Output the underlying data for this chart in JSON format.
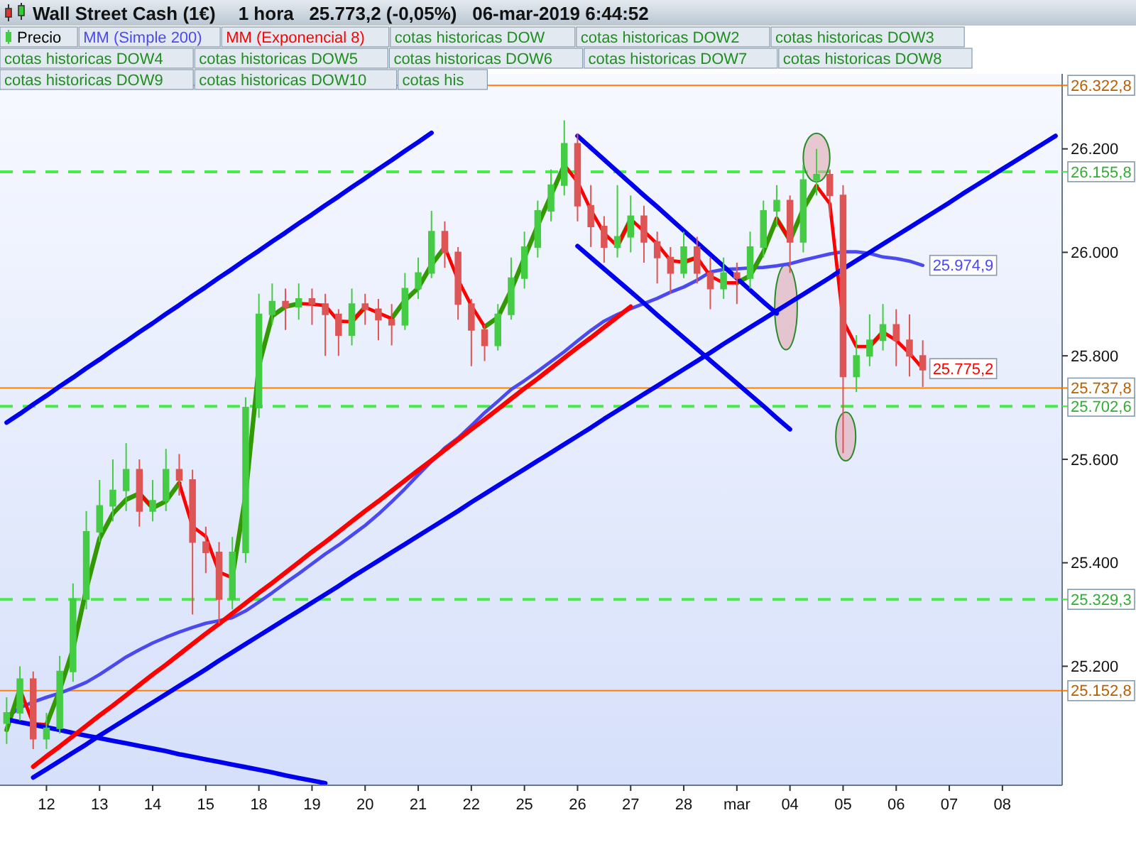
{
  "chart_data": {
    "type": "candlestick",
    "title": "Wall Street Cash (1€)",
    "subtitle": "1 hora   25.773,2 (-0,05%)   06-mar-2019 6:44:52",
    "categories": [
      null,
      null,
      null,
      "12",
      null,
      null,
      null,
      "13",
      null,
      null,
      null,
      "14",
      null,
      null,
      null,
      "15",
      null,
      null,
      null,
      "18",
      null,
      null,
      null,
      "19",
      null,
      null,
      null,
      "20",
      null,
      null,
      null,
      "21",
      null,
      null,
      null,
      "22",
      null,
      null,
      null,
      "25",
      null,
      null,
      null,
      "26",
      null,
      null,
      null,
      "27",
      null,
      null,
      null,
      "28",
      null,
      null,
      null,
      "mar",
      null,
      null,
      null,
      "04",
      null,
      null,
      null,
      "05",
      null,
      null,
      null,
      "06",
      null,
      null,
      null,
      "07",
      null,
      null,
      null,
      "08",
      null,
      null,
      null,
      null
    ],
    "ylim": [
      24970,
      26345
    ],
    "yticks": [
      {
        "value": 25200,
        "label": "25.200"
      },
      {
        "value": 25400,
        "label": "25.400"
      },
      {
        "value": 25600,
        "label": "25.600"
      },
      {
        "value": 25800,
        "label": "25.800"
      },
      {
        "value": 26000,
        "label": "26.000"
      },
      {
        "value": 26200,
        "label": "26.200"
      }
    ],
    "legend": "top left",
    "series": [
      {
        "name": "Precio",
        "ohlc": [
          [
            25090,
            25140,
            25050,
            25110
          ],
          [
            25110,
            25200,
            25095,
            25175
          ],
          [
            25175,
            25190,
            25040,
            25060
          ],
          [
            25060,
            25110,
            25040,
            25080
          ],
          [
            25080,
            25220,
            25070,
            25190
          ],
          [
            25190,
            25360,
            25170,
            25330
          ],
          [
            25330,
            25500,
            25310,
            25460
          ],
          [
            25460,
            25560,
            25440,
            25510
          ],
          [
            25510,
            25600,
            25480,
            25540
          ],
          [
            25540,
            25631,
            25500,
            25580
          ],
          [
            25580,
            25600,
            25470,
            25500
          ],
          [
            25500,
            25560,
            25480,
            25520
          ],
          [
            25520,
            25620,
            25500,
            25580
          ],
          [
            25580,
            25610,
            25530,
            25560
          ],
          [
            25560,
            25580,
            25300,
            25440
          ],
          [
            25440,
            25470,
            25380,
            25420
          ],
          [
            25420,
            25440,
            25283,
            25330
          ],
          [
            25330,
            25450,
            25310,
            25420
          ],
          [
            25420,
            25720,
            25400,
            25700
          ],
          [
            25700,
            25920,
            25680,
            25880
          ],
          [
            25880,
            25940,
            25860,
            25905
          ],
          [
            25905,
            25930,
            25850,
            25895
          ],
          [
            25895,
            25940,
            25870,
            25910
          ],
          [
            25910,
            25930,
            25860,
            25900
          ],
          [
            25900,
            25920,
            25800,
            25880
          ],
          [
            25880,
            25890,
            25800,
            25840
          ],
          [
            25840,
            25930,
            25820,
            25900
          ],
          [
            25900,
            25920,
            25860,
            25890
          ],
          [
            25890,
            25910,
            25830,
            25870
          ],
          [
            25870,
            25900,
            25820,
            25860
          ],
          [
            25860,
            25960,
            25850,
            25930
          ],
          [
            25930,
            25990,
            25910,
            25960
          ],
          [
            25960,
            26080,
            25950,
            26040
          ],
          [
            26040,
            26060,
            25970,
            26000
          ],
          [
            26000,
            26010,
            25870,
            25900
          ],
          [
            25900,
            25910,
            25780,
            25850
          ],
          [
            25850,
            25860,
            25790,
            25820
          ],
          [
            25820,
            25900,
            25810,
            25880
          ],
          [
            25880,
            25990,
            25870,
            25950
          ],
          [
            25950,
            26040,
            25930,
            26010
          ],
          [
            26010,
            26100,
            25990,
            26080
          ],
          [
            26080,
            26160,
            26060,
            26130
          ],
          [
            26130,
            26255,
            26110,
            26210
          ],
          [
            26210,
            26230,
            26060,
            26090
          ],
          [
            26090,
            26130,
            26010,
            26050
          ],
          [
            26050,
            26070,
            25980,
            26010
          ],
          [
            26010,
            26130,
            25990,
            26030
          ],
          [
            26030,
            26110,
            26000,
            26070
          ],
          [
            26070,
            26090,
            25980,
            26020
          ],
          [
            26020,
            26040,
            25940,
            25990
          ],
          [
            25990,
            26010,
            25920,
            25960
          ],
          [
            25960,
            26040,
            25950,
            26010
          ],
          [
            26010,
            26030,
            25940,
            25960
          ],
          [
            25960,
            25990,
            25890,
            25930
          ],
          [
            25930,
            25990,
            25910,
            25960
          ],
          [
            25960,
            25980,
            25900,
            25950
          ],
          [
            25950,
            26040,
            25930,
            26010
          ],
          [
            26010,
            26100,
            25990,
            26080
          ],
          [
            26080,
            26130,
            26050,
            26100
          ],
          [
            26100,
            26110,
            25960,
            26020
          ],
          [
            26020,
            26170,
            26000,
            26140
          ],
          [
            26140,
            26200,
            26110,
            26150
          ],
          [
            26150,
            26160,
            26070,
            26110
          ],
          [
            26110,
            26130,
            25612,
            25760
          ],
          [
            25760,
            25840,
            25730,
            25800
          ],
          [
            25800,
            25880,
            25780,
            25830
          ],
          [
            25830,
            25900,
            25810,
            25860
          ],
          [
            25860,
            25890,
            25780,
            25830
          ],
          [
            25830,
            25880,
            25760,
            25800
          ],
          [
            25800,
            25830,
            25740,
            25773
          ],
          null,
          null,
          null,
          null,
          null,
          null,
          null,
          null,
          null,
          null
        ]
      },
      {
        "type": "line",
        "name": "MM (Simple 200)",
        "color": "#4a4af0",
        "values": [
          25101,
          25120,
          25131,
          25140,
          25148,
          25158,
          25169,
          25184,
          25201,
          25218,
          25232,
          25245,
          25256,
          25266,
          25275,
          25283,
          25288,
          25294,
          25307,
          25324,
          25342,
          25361,
          25379,
          25398,
          25417,
          25434,
          25453,
          25472,
          25494,
          25518,
          25543,
          25570,
          25596,
          25622,
          25641,
          25665,
          25690,
          25712,
          25735,
          25752,
          25770,
          25789,
          25808,
          25829,
          25849,
          25867,
          25880,
          25891,
          25901,
          25911,
          25923,
          25933,
          25946,
          25962,
          25967,
          25968,
          25970,
          25971,
          25974,
          25978,
          25985,
          25991,
          25997,
          26001,
          26001,
          25998,
          25991,
          25988,
          25983,
          25974.9,
          null,
          null,
          null,
          null,
          null,
          null,
          null,
          null,
          null,
          null
        ],
        "value_labels": [
          null,
          null,
          null,
          null,
          null,
          null,
          null,
          null,
          null,
          null,
          null,
          null,
          null,
          null,
          null,
          null,
          null,
          null,
          null,
          null,
          null,
          null,
          null,
          null,
          null,
          null,
          null,
          null,
          null,
          null,
          null,
          null,
          null,
          null,
          null,
          null,
          null,
          null,
          null,
          null,
          null,
          null,
          null,
          null,
          null,
          null,
          null,
          null,
          null,
          null,
          null,
          null,
          null,
          null,
          null,
          null,
          null,
          null,
          null,
          null,
          null,
          null,
          null,
          null,
          null,
          null,
          null,
          null,
          null,
          "25.974,9",
          null,
          null,
          null,
          null,
          null,
          null,
          null,
          null,
          null,
          null
        ]
      },
      {
        "type": "line",
        "color": "#339900",
        "values": [
          25077,
          25156,
          null,
          25087,
          25154,
          25233,
          25349,
          25447,
          25495,
          25522,
          25534,
          25506,
          25519,
          25554,
          null,
          null,
          null,
          25371,
          25532,
          25781,
          25877,
          25895,
          25901,
          null,
          null,
          null,
          25866,
          25894,
          null,
          25872,
          25907,
          25931,
          25976,
          26010,
          null,
          null,
          25856,
          25874,
          25927,
          25990,
          26052,
          26110,
          26169,
          null,
          null,
          null,
          26012,
          26064,
          null,
          null,
          null,
          25981,
          25990,
          null,
          null,
          25941,
          25955,
          26001,
          26065,
          26023,
          26084,
          26128,
          null,
          null,
          null,
          25818,
          25846,
          null,
          null,
          null,
          null,
          null,
          null,
          null,
          null,
          null,
          null,
          null,
          null,
          null
        ]
      },
      {
        "type": "line",
        "name": "MM (Exponencial 8)",
        "color": "#ff0000",
        "values": [
          null,
          25156,
          25089,
          25087,
          null,
          null,
          null,
          null,
          null,
          null,
          25534,
          25506,
          null,
          25554,
          25470,
          25451,
          25382,
          25371,
          null,
          null,
          null,
          null,
          25901,
          25900,
          25897,
          25867,
          25866,
          25894,
          25883,
          25872,
          null,
          null,
          null,
          26010,
          25947,
          25897,
          25856,
          null,
          null,
          null,
          null,
          null,
          26169,
          26136,
          26082,
          26037,
          26012,
          26064,
          26041,
          26016,
          25984,
          25981,
          25990,
          25954,
          25941,
          25941,
          null,
          null,
          26065,
          26023,
          null,
          26128,
          26094,
          25868,
          25818,
          25818,
          25846,
          25830,
          25805,
          25775.2,
          null,
          null,
          null,
          null,
          null,
          null,
          null,
          null,
          null,
          null
        ],
        "value_labels": [
          null,
          null,
          null,
          null,
          null,
          null,
          null,
          null,
          null,
          null,
          null,
          null,
          null,
          null,
          null,
          null,
          null,
          null,
          null,
          null,
          null,
          null,
          null,
          null,
          null,
          null,
          null,
          null,
          null,
          null,
          null,
          null,
          null,
          null,
          null,
          null,
          null,
          null,
          null,
          null,
          null,
          null,
          null,
          null,
          null,
          null,
          null,
          null,
          null,
          null,
          null,
          null,
          null,
          null,
          null,
          null,
          null,
          null,
          null,
          null,
          null,
          null,
          null,
          null,
          null,
          null,
          null,
          null,
          null,
          "25.775,2",
          null,
          null,
          null,
          null,
          null,
          null,
          null,
          null,
          null,
          null
        ]
      },
      {
        "type": "line",
        "color": "#0000ee",
        "values": [
          25671,
          25688,
          25706,
          25723,
          25741,
          25758,
          25776,
          25793,
          25811,
          25828,
          25846,
          25863,
          25881,
          25898,
          25916,
          25933,
          25951,
          25968,
          25986,
          26003,
          26021,
          26038,
          26056,
          26073,
          26091,
          26108,
          26126,
          26143,
          26161,
          26178,
          26196,
          26213,
          26231,
          null,
          null,
          null,
          null,
          null,
          null,
          null,
          null,
          null,
          null,
          null,
          null,
          null,
          null,
          null,
          null,
          null,
          null,
          null,
          null,
          null,
          null,
          null,
          null,
          null,
          null,
          null,
          null,
          null,
          null,
          null,
          null,
          null,
          null,
          null,
          null,
          null,
          null,
          null,
          null,
          null,
          null,
          null,
          null,
          null,
          null,
          null
        ]
      },
      {
        "type": "line",
        "color": "#0000ee",
        "values": [
          null,
          null,
          24985,
          25001,
          25017,
          25033,
          25049,
          25066,
          25082,
          25098,
          25114,
          25130,
          25146,
          25162,
          25178,
          25194,
          25211,
          25227,
          25243,
          25259,
          25275,
          25291,
          25307,
          25323,
          25339,
          25355,
          25372,
          25388,
          25404,
          25420,
          25436,
          25452,
          25468,
          25484,
          25500,
          25517,
          25533,
          25549,
          25565,
          25581,
          25597,
          25613,
          25629,
          25645,
          25661,
          25678,
          25694,
          25710,
          25726,
          25742,
          25758,
          25774,
          25790,
          25806,
          25823,
          25839,
          25855,
          25871,
          25887,
          25903,
          25919,
          25935,
          25951,
          25968,
          25984,
          26000,
          26016,
          26032,
          26048,
          26064,
          26080,
          26096,
          26113,
          26129,
          26145,
          26161,
          26177,
          26193,
          26209,
          26225
        ]
      },
      {
        "type": "line",
        "color": "#0000ee",
        "values": [
          25097,
          25092,
          25087,
          25082,
          25077,
          25071,
          25066,
          25061,
          25056,
          25051,
          25046,
          25041,
          25036,
          25030,
          25025,
          25020,
          25015,
          25010,
          25005,
          25000,
          24995,
          24989,
          24984,
          24979,
          24974,
          null,
          null,
          null,
          null,
          null,
          null,
          null,
          null,
          null,
          null,
          null,
          null,
          null,
          null,
          null,
          null,
          null,
          null,
          null,
          null,
          null,
          null,
          null,
          null,
          null,
          null,
          null,
          null,
          null,
          null,
          null,
          null,
          null,
          null,
          null,
          null,
          null,
          null,
          null,
          null,
          null,
          null,
          null,
          null,
          null,
          null,
          null,
          null,
          null,
          null,
          null,
          null,
          null,
          null,
          null
        ]
      },
      {
        "type": "line",
        "color": "#ff0000",
        "values": [
          null,
          null,
          25006,
          25026,
          25045,
          25065,
          25085,
          25105,
          25124,
          25144,
          25164,
          25184,
          25203,
          25223,
          25243,
          25263,
          25282,
          25302,
          25322,
          25342,
          25361,
          25381,
          25401,
          25421,
          25440,
          25460,
          25480,
          25500,
          25519,
          25539,
          25559,
          25579,
          25598,
          25618,
          25638,
          25658,
          25677,
          25697,
          25717,
          25737,
          25756,
          25776,
          25796,
          25816,
          25835,
          25855,
          25875,
          25895,
          null,
          null,
          null,
          null,
          null,
          null,
          null,
          null,
          null,
          null,
          null,
          null,
          null,
          null,
          null,
          null,
          null,
          null,
          null,
          null,
          null,
          null,
          null,
          null,
          null,
          null,
          null,
          null,
          null,
          null,
          null,
          null
        ]
      },
      {
        "type": "line",
        "color": "#0000ee",
        "values": [
          null,
          null,
          null,
          null,
          null,
          null,
          null,
          null,
          null,
          null,
          null,
          null,
          null,
          null,
          null,
          null,
          null,
          null,
          null,
          null,
          null,
          null,
          null,
          null,
          null,
          null,
          null,
          null,
          null,
          null,
          null,
          null,
          null,
          null,
          null,
          null,
          null,
          null,
          null,
          null,
          null,
          null,
          null,
          26225,
          26202,
          26179,
          26156,
          26133,
          26110,
          26088,
          26065,
          26042,
          26019,
          25996,
          25973,
          25950,
          25927,
          25904,
          25882,
          null,
          null,
          null,
          null,
          null,
          null,
          null,
          null,
          null,
          null,
          null,
          null,
          null,
          null,
          null,
          null,
          null,
          null,
          null,
          null,
          null
        ]
      },
      {
        "type": "line",
        "color": "#0000ee",
        "values": [
          null,
          null,
          null,
          null,
          null,
          null,
          null,
          null,
          null,
          null,
          null,
          null,
          null,
          null,
          null,
          null,
          null,
          null,
          null,
          null,
          null,
          null,
          null,
          null,
          null,
          null,
          null,
          null,
          null,
          null,
          null,
          null,
          null,
          null,
          null,
          null,
          null,
          null,
          null,
          null,
          null,
          null,
          null,
          26012,
          25990,
          25968,
          25946,
          25924,
          25902,
          25879,
          25857,
          25835,
          25813,
          25791,
          25769,
          25747,
          25725,
          25703,
          25680,
          25658,
          null,
          null,
          null,
          null,
          null,
          null,
          null,
          null,
          null,
          null,
          null,
          null,
          null,
          null,
          null,
          null,
          null,
          null,
          null,
          null
        ]
      }
    ],
    "ref_lines": [
      {
        "axis": "y",
        "value": 26155.8,
        "label": "26.155,8",
        "color": "#44ee44",
        "line_style": "dashed"
      },
      {
        "axis": "y",
        "value": 25702.6,
        "label": "25.702,6",
        "color": "#44ee44",
        "line_style": "dashed"
      },
      {
        "axis": "y",
        "value": 25329.3,
        "label": "25.329,3",
        "color": "#44ee44",
        "line_style": "dashed"
      },
      {
        "axis": "y",
        "value": 25737.8,
        "label": "25.737,8",
        "color": "#ff8000",
        "line_style": "solid"
      },
      {
        "axis": "y",
        "value": 25152.8,
        "label": "25.152,8",
        "color": "#ff8000",
        "line_style": "solid"
      },
      {
        "axis": "y",
        "value": 26322.8,
        "label": "26.322,8",
        "color": "#ff8000",
        "line_style": "solid"
      }
    ],
    "annotations": [
      "cotas historicas DOW",
      "cotas historicas DOW2",
      "cotas historicas DOW3",
      "cotas historicas DOW4",
      "cotas historicas DOW5",
      "cotas historicas DOW6",
      "cotas historicas DOW7",
      "cotas historicas DOW8",
      "cotas historicas DOW9",
      "cotas historicas DOW10",
      "cotas his"
    ]
  }
}
